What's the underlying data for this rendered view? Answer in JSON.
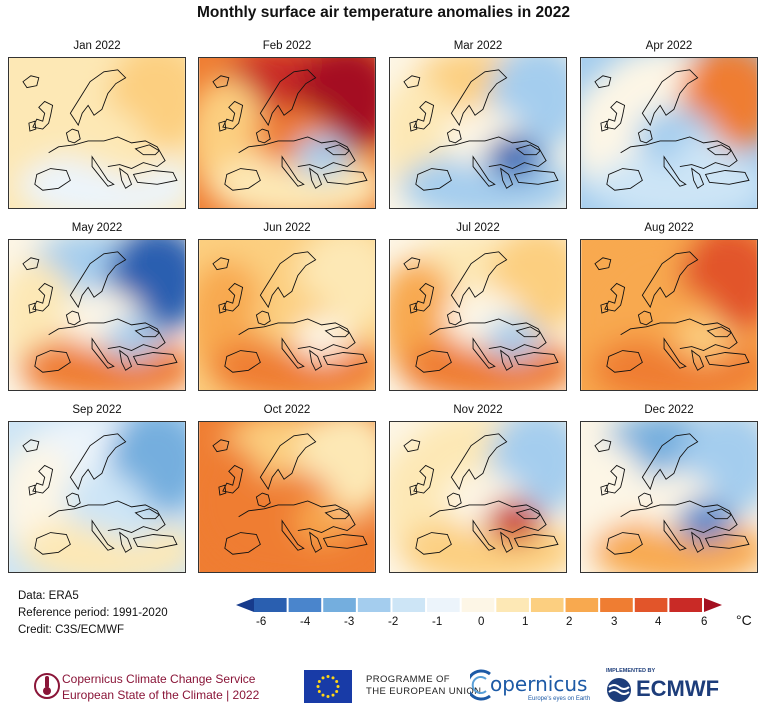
{
  "title": "Monthly surface air temperature anomalies in 2022",
  "panels": [
    {
      "label": "Jan 2022",
      "north": 0.8,
      "northeast": 1.5,
      "west": 0.8,
      "south": -0.3,
      "center": 0.6,
      "spot": 1.0
    },
    {
      "label": "Feb 2022",
      "north": 5.0,
      "northeast": 6.0,
      "west": 1.5,
      "south": 0.6,
      "center": 2.5,
      "spot": -1.0
    },
    {
      "label": "Mar 2022",
      "north": 1.2,
      "northeast": -1.5,
      "west": 1.0,
      "south": -1.5,
      "center": 0.2,
      "spot": -4.0
    },
    {
      "label": "Apr 2022",
      "north": 0.3,
      "northeast": 2.5,
      "west": 0.5,
      "south": -0.5,
      "center": -1.0,
      "spot": -0.5
    },
    {
      "label": "May 2022",
      "north": -1.0,
      "northeast": -4.0,
      "west": 1.0,
      "south": 2.5,
      "center": 0.5,
      "spot": -1.5
    },
    {
      "label": "Jun 2022",
      "north": 1.5,
      "northeast": 0.8,
      "west": 1.8,
      "south": 3.0,
      "center": 1.5,
      "spot": 0.5
    },
    {
      "label": "Jul 2022",
      "north": 0.8,
      "northeast": 1.5,
      "west": 2.0,
      "south": 2.5,
      "center": 0.3,
      "spot": -1.0
    },
    {
      "label": "Aug 2022",
      "north": 2.0,
      "northeast": 4.0,
      "west": 2.0,
      "south": 2.8,
      "center": 2.0,
      "spot": 1.5
    },
    {
      "label": "Sep 2022",
      "north": -0.3,
      "northeast": -2.0,
      "west": 0.2,
      "south": 0.8,
      "center": -0.5,
      "spot": -0.8
    },
    {
      "label": "Oct 2022",
      "north": 1.5,
      "northeast": 1.0,
      "west": 3.0,
      "south": 2.2,
      "center": 2.5,
      "spot": 1.8
    },
    {
      "label": "Nov 2022",
      "north": 1.0,
      "northeast": -1.0,
      "west": 0.8,
      "south": 1.5,
      "center": 0.5,
      "spot": 4.5
    },
    {
      "label": "Dec 2022",
      "north": -2.5,
      "northeast": -1.5,
      "west": 0.3,
      "south": 2.0,
      "center": 0.2,
      "spot": -3.5
    }
  ],
  "info": {
    "data": "Data: ERA5",
    "reference": "Reference period: 1991-2020",
    "credit": "Credit: C3S/ECMWF"
  },
  "colorbar": {
    "ticks": [
      "-6",
      "-4",
      "-3",
      "-2",
      "-1",
      "0",
      "1",
      "2",
      "3",
      "4",
      "6"
    ],
    "unit": "°C",
    "colors": [
      "#173b8c",
      "#2a5fb0",
      "#4a85cc",
      "#74aede",
      "#a4cdee",
      "#cde5f6",
      "#ecf4fb",
      "#fdf6e6",
      "#fde8b5",
      "#fccf80",
      "#f8a94f",
      "#ef7d32",
      "#e2552a",
      "#c92a26",
      "#a41021"
    ]
  },
  "footer": {
    "c3s_line1": "Copernicus Climate Change Service",
    "c3s_line2": "European State of the Climate | 2022",
    "programme_line1": "PROGRAMME OF",
    "programme_line2": "THE EUROPEAN UNION",
    "copernicus": "opernicus",
    "copernicus_sub": "Europe's eyes on Earth",
    "implemented_by": "IMPLEMENTED BY",
    "ecmwf": "ECMWF"
  }
}
